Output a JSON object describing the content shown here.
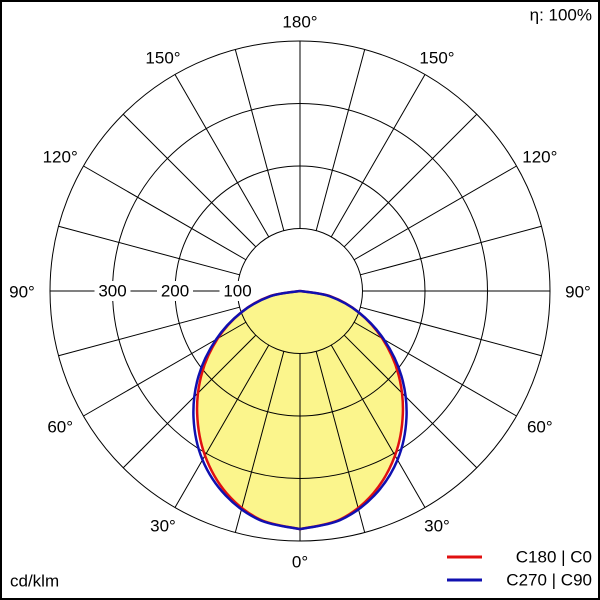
{
  "chart_data": {
    "type": "polar",
    "efficiency_label": "η: 100%",
    "unit_label": "cd/klm",
    "angles": [
      0,
      10,
      20,
      30,
      40,
      50,
      60,
      70,
      80,
      90
    ],
    "rlim": [
      0,
      400
    ],
    "rticks": [
      100,
      200,
      300
    ],
    "angle_ticks": [
      {
        "value": 0,
        "label": "0°"
      },
      {
        "value": 30,
        "label": "30°"
      },
      {
        "value": 60,
        "label": "60°"
      },
      {
        "value": 90,
        "label": "90°"
      },
      {
        "value": 120,
        "label": "120°"
      },
      {
        "value": 150,
        "label": "150°"
      },
      {
        "value": 180,
        "label": "180°"
      }
    ],
    "fill_color": "#fbf58c",
    "series": [
      {
        "name": "C180 | C0",
        "color": "#e01010",
        "values": [
          381,
          371,
          344,
          304,
          256,
          205,
          152,
          100,
          50,
          0
        ]
      },
      {
        "name": "C270 | C90",
        "color": "#1010b0",
        "values": [
          381,
          372,
          348,
          312,
          265,
          212,
          155,
          100,
          48,
          0
        ]
      }
    ]
  }
}
